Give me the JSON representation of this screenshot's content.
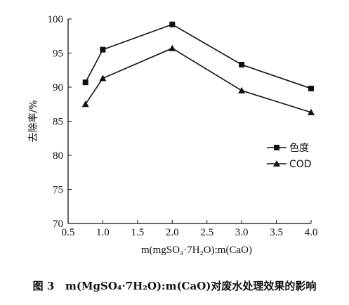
{
  "caption": {
    "label": "图 3",
    "text": "m(MgSO₄·7H₂O):m(CaO)对废水处理效果的影响"
  },
  "chart_data": {
    "type": "line",
    "title": "",
    "xlabel": "m(mgSO₄·7H₂O):m(CaO)",
    "ylabel": "去除率/%",
    "xlim": [
      0.5,
      4.0
    ],
    "ylim": [
      70,
      100
    ],
    "xticks": [
      "0.5",
      "1.0",
      "1.5",
      "2.0",
      "2.5",
      "3.0",
      "3.5",
      "4.0"
    ],
    "yticks": [
      "70",
      "75",
      "80",
      "85",
      "90",
      "95",
      "100"
    ],
    "x": [
      0.75,
      1.0,
      2.0,
      3.0,
      4.0
    ],
    "series": [
      {
        "name": "色度",
        "marker": "square",
        "values": [
          90.7,
          95.5,
          99.2,
          93.3,
          89.8
        ]
      },
      {
        "name": "COD",
        "marker": "triangle",
        "values": [
          87.5,
          91.3,
          95.7,
          89.5,
          86.3
        ]
      }
    ],
    "legend_position": "right-middle",
    "grid": false,
    "line_color": "#111111"
  }
}
